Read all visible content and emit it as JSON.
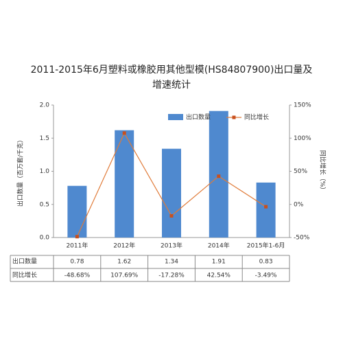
{
  "chart_data": {
    "type": "bar-line",
    "title": "2011-2015年6月塑料或橡胶用其他型模(HS84807900)出口量及增速统计",
    "y_label": "出口数量（百万套/千克）",
    "y2_label": "同比增长（%）",
    "categories": [
      "2011年",
      "2012年",
      "2013年",
      "2014年",
      "2015年1-6月"
    ],
    "series": [
      {
        "name": "出口数量",
        "type": "bar",
        "color": "#4f89cf",
        "values": [
          0.78,
          1.62,
          1.34,
          1.91,
          0.83
        ]
      },
      {
        "name": "同比增长",
        "type": "line",
        "axis": "y2",
        "color": "#e07b39",
        "values": [
          -48.68,
          107.69,
          -17.28,
          42.54,
          -3.49
        ],
        "value_labels": [
          "-48.68%",
          "107.69%",
          "-17.28%",
          "42.54%",
          "-3.49%"
        ]
      }
    ],
    "ylim": [
      0,
      2
    ],
    "yticks": [
      {
        "value": 0,
        "label": "0.0"
      },
      0.5,
      {
        "value": 1,
        "label": "1.0"
      },
      1.5,
      {
        "value": 2,
        "label": "2.0"
      }
    ],
    "y2lim": [
      -50,
      150
    ],
    "y2ticks": [
      {
        "value": -50,
        "label": "-50%"
      },
      {
        "value": 0,
        "label": "0%"
      },
      {
        "value": 50,
        "label": "50%"
      },
      {
        "value": 100,
        "label": "100%"
      },
      {
        "value": 150,
        "label": "150%"
      }
    ],
    "legend": "top-right"
  }
}
